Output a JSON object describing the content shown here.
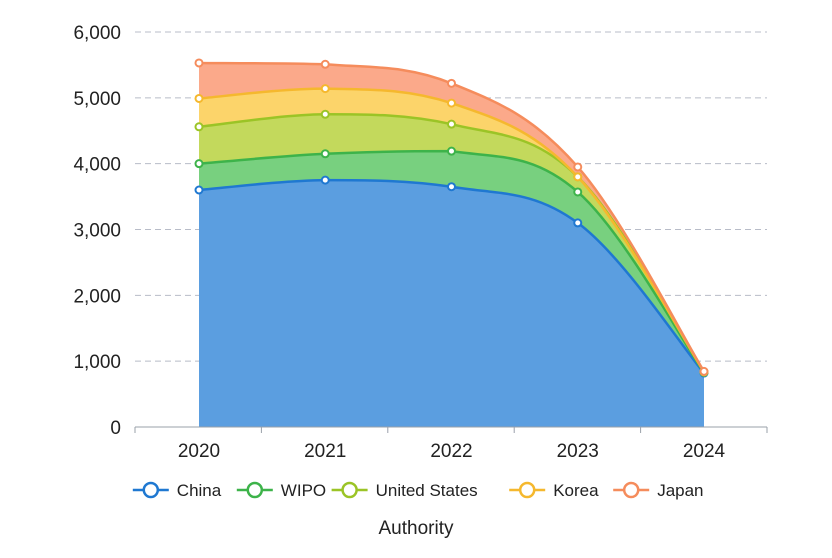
{
  "chart_data": {
    "type": "area",
    "stacked": true,
    "categories": [
      "2020",
      "2021",
      "2022",
      "2023",
      "2024"
    ],
    "xlabel": "Authority",
    "ylabel": "",
    "ylim": [
      0,
      6000
    ],
    "yticks": [
      "0",
      "1,000",
      "2,000",
      "3,000",
      "4,000",
      "5,000",
      "6,000"
    ],
    "grid": "horizontal dashed",
    "legend_position": "bottom",
    "series": [
      {
        "name": "China",
        "values": [
          3600,
          3750,
          3650,
          3100,
          820
        ],
        "color": "#5b9ee0",
        "line": "#1f78d1"
      },
      {
        "name": "WIPO",
        "values": [
          400,
          400,
          540,
          470,
          10
        ],
        "color": "#78d07f",
        "line": "#3db34a"
      },
      {
        "name": "United States",
        "values": [
          560,
          600,
          410,
          230,
          5
        ],
        "color": "#c3d95c",
        "line": "#9bc426"
      },
      {
        "name": "Korea",
        "values": [
          430,
          390,
          320,
          0,
          5
        ],
        "color": "#fcd46a",
        "line": "#f5b82e"
      },
      {
        "name": "Japan",
        "values": [
          540,
          370,
          300,
          150,
          5
        ],
        "color": "#fba98a",
        "line": "#f58c5c"
      }
    ]
  }
}
